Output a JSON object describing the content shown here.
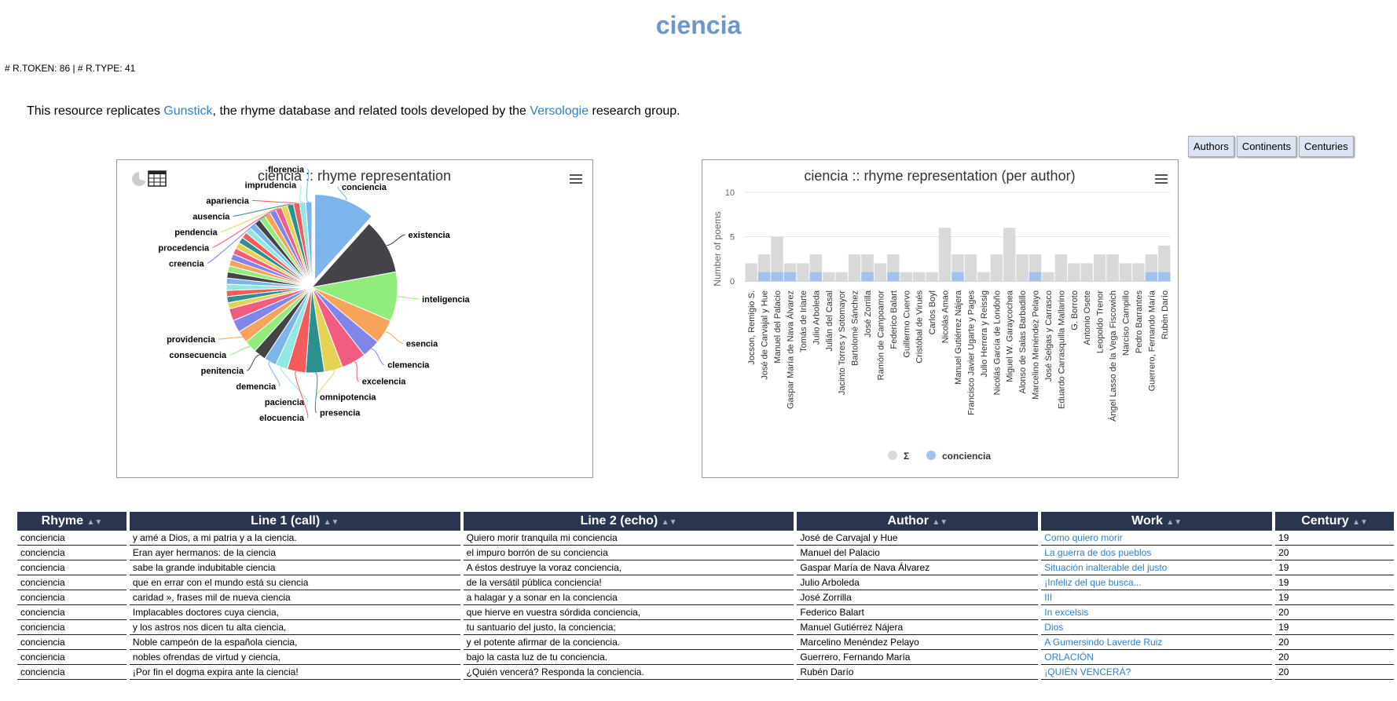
{
  "header": {
    "title": "ciencia",
    "counts": "# R.TOKEN: 86 | # R.TYPE: 41",
    "intro": {
      "prefix": "This resource replicates ",
      "link1": "Gunstick",
      "middle": ", the rhyme database and related tools developed by the ",
      "link2": "Versologie",
      "suffix": " research group."
    }
  },
  "buttons": [
    "Authors",
    "Continents",
    "Centuries"
  ],
  "icons": {
    "pie": "pie-chart-icon",
    "table": "table-icon",
    "menu": "hamburger-menu-icon"
  },
  "chart_data": [
    {
      "type": "pie",
      "title": "ciencia :: rhyme representation",
      "labeled_slices": [
        {
          "label": "conciencia",
          "value": 10,
          "color": "#7cb5ec",
          "sliced": true
        },
        {
          "label": "existencia",
          "value": 9,
          "color": "#434348"
        },
        {
          "label": "inteligencia",
          "value": 8,
          "color": "#90ed7d"
        },
        {
          "label": "esencia",
          "value": 4,
          "color": "#f7a35c"
        },
        {
          "label": "clemencia",
          "value": 3,
          "color": "#8085e9"
        },
        {
          "label": "excelencia",
          "value": 4,
          "color": "#f15c80"
        },
        {
          "label": "omnipotencia",
          "value": 3,
          "color": "#e4d354"
        },
        {
          "label": "presencia",
          "value": 3,
          "color": "#2b908f"
        },
        {
          "label": "elocuencia",
          "value": 3,
          "color": "#f45b5b"
        },
        {
          "label": "paciencia",
          "value": 2,
          "color": "#91e8e1"
        },
        {
          "label": "demencia",
          "value": 2,
          "color": "#7cb5ec"
        },
        {
          "label": "penitencia",
          "value": 2,
          "color": "#434348"
        },
        {
          "label": "consecuencia",
          "value": 2,
          "color": "#90ed7d"
        },
        {
          "label": "providencia",
          "value": 2,
          "color": "#f7a35c"
        },
        {
          "label": "creencia",
          "value": 1,
          "color": "#8085e9"
        },
        {
          "label": "procedencia",
          "value": 1,
          "color": "#f15c80"
        },
        {
          "label": "pendencia",
          "value": 1,
          "color": "#e4d354"
        },
        {
          "label": "ausencia",
          "value": 1,
          "color": "#2b908f"
        },
        {
          "label": "apariencia",
          "value": 1,
          "color": "#f45b5b"
        },
        {
          "label": "imprudencia",
          "value": 1,
          "color": "#91e8e1"
        },
        {
          "label": "florencia",
          "value": 1,
          "color": "#7cb5ec"
        }
      ],
      "unlabeled_slice_values": [
        2,
        2,
        1,
        1,
        1,
        1,
        1,
        1,
        1,
        1,
        1,
        1,
        1,
        1,
        1,
        1,
        1,
        1,
        1,
        1
      ]
    },
    {
      "type": "bar",
      "title": "ciencia :: rhyme representation (per author)",
      "ylabel": "Number of poems",
      "ylim": [
        0,
        10
      ],
      "yticks": [
        0,
        5,
        10
      ],
      "categories": [
        "Jocson, Remigio S.",
        "José de Carvajal y Hue",
        "Manuel del Palacio",
        "Gaspar María de Nava Álvarez",
        "Tomás de Iriarte",
        "Julio Arboleda",
        "Julián del Casal",
        "Jacinto Torres y Sotomayor",
        "Bartolomé Sánchez",
        "José Zorrilla",
        "Ramón de Campoamor",
        "Federico Balart",
        "Guillermo Cuervo",
        "Cristóbal de Virués",
        "Carlos Boyl",
        "Nicolás Amao",
        "Manuel Gutiérrez Nájera",
        "Francisco Javier Ugarte y Pages",
        "Julio Herrera y Reissig",
        "Nicolás García de Londoño",
        "Miguel W. Garaycochea",
        "Alonso de Salas Barbadillo",
        "Marcelino Menéndez Pelayo",
        "José Selgas y Carrasco",
        "Eduardo Carrasquilla Mallarino",
        "G. Borroto",
        "Antonio Osete",
        "Leopoldo Trenor",
        "Ángel Lasso de la Vega Fiscowich",
        "Narciso Campillo",
        "Pedro Barrantes",
        "Guerrero, Fernando María",
        "Rubén Darío"
      ],
      "series": [
        {
          "name": "Σ",
          "color": "#d9d9d9",
          "values": [
            2,
            3,
            5,
            2,
            2,
            3,
            1,
            1,
            3,
            3,
            2,
            3,
            1,
            1,
            1,
            6,
            3,
            3,
            1,
            3,
            6,
            3,
            3,
            1,
            3,
            2,
            2,
            3,
            3,
            2,
            2,
            3,
            4
          ]
        },
        {
          "name": "conciencia",
          "color": "#a2c2ee",
          "values": [
            0,
            1,
            1,
            1,
            0,
            1,
            0,
            0,
            0,
            1,
            0,
            1,
            0,
            0,
            0,
            0,
            1,
            0,
            0,
            0,
            0,
            0,
            1,
            0,
            0,
            0,
            0,
            0,
            0,
            0,
            0,
            1,
            1
          ]
        }
      ],
      "legend": "bottom-center"
    }
  ],
  "table": {
    "headers": [
      "Rhyme",
      "Line 1 (call)",
      "Line 2 (echo)",
      "Author",
      "Work",
      "Century"
    ],
    "sort_glyph": "▲▼",
    "rows": [
      [
        "conciencia",
        "y amé a Dios, a mi patria y a la ciencia.",
        "Quiero morir tranquila mi conciencia",
        "José de Carvajal y Hue",
        "Como quiero morir",
        "19"
      ],
      [
        "conciencia",
        "Eran ayer hermanos: de la ciencia",
        "el impuro borrón de su conciencia",
        "Manuel del Palacio",
        "La guerra de dos pueblos",
        "20"
      ],
      [
        "conciencia",
        "sabe la grande indubitable ciencia",
        "A éstos destruye la voraz conciencia,",
        "Gaspar María de Nava Álvarez",
        "Situación inalterable del justo",
        "19"
      ],
      [
        "conciencia",
        "que en errar con el mundo está su ciencia",
        "de la versátil pública conciencia!",
        "Julio Arboleda",
        "¡Infeliz del que busca...",
        "19"
      ],
      [
        "conciencia",
        "caridad », frases mil de nueva ciencia",
        "a halagar y a sonar en la conciencia",
        "José Zorrilla",
        "III",
        "19"
      ],
      [
        "conciencia",
        "Implacables doctores cuya ciencia,",
        "que hierve en vuestra sórdida conciencia,",
        "Federico Balart",
        "In excelsis",
        "20"
      ],
      [
        "conciencia",
        "y los astros nos dicen tu alta ciencia,",
        "tu santuario del justo, la conciencia;",
        "Manuel Gutiérrez Nájera",
        "Dios",
        "19"
      ],
      [
        "conciencia",
        "Noble campeón de la española ciencia,",
        "y el potente afirmar de la conciencia.",
        "Marcelino Menéndez Pelayo",
        "A Gumersindo Laverde Ruiz",
        "20"
      ],
      [
        "conciencia",
        "nobles ofrendas de virtud y ciencia,",
        "bajo la casta luz de tu conciencia.",
        "Guerrero, Fernando María",
        "ORLACIÓN",
        "20"
      ],
      [
        "conciencia",
        "¡Por fin el dogma expira ante la ciencia!",
        "¿Quién vencerá? Responda la conciencia.",
        "Rubén Darío",
        "¡QUIÉN VENCERÁ?",
        "20"
      ]
    ]
  }
}
